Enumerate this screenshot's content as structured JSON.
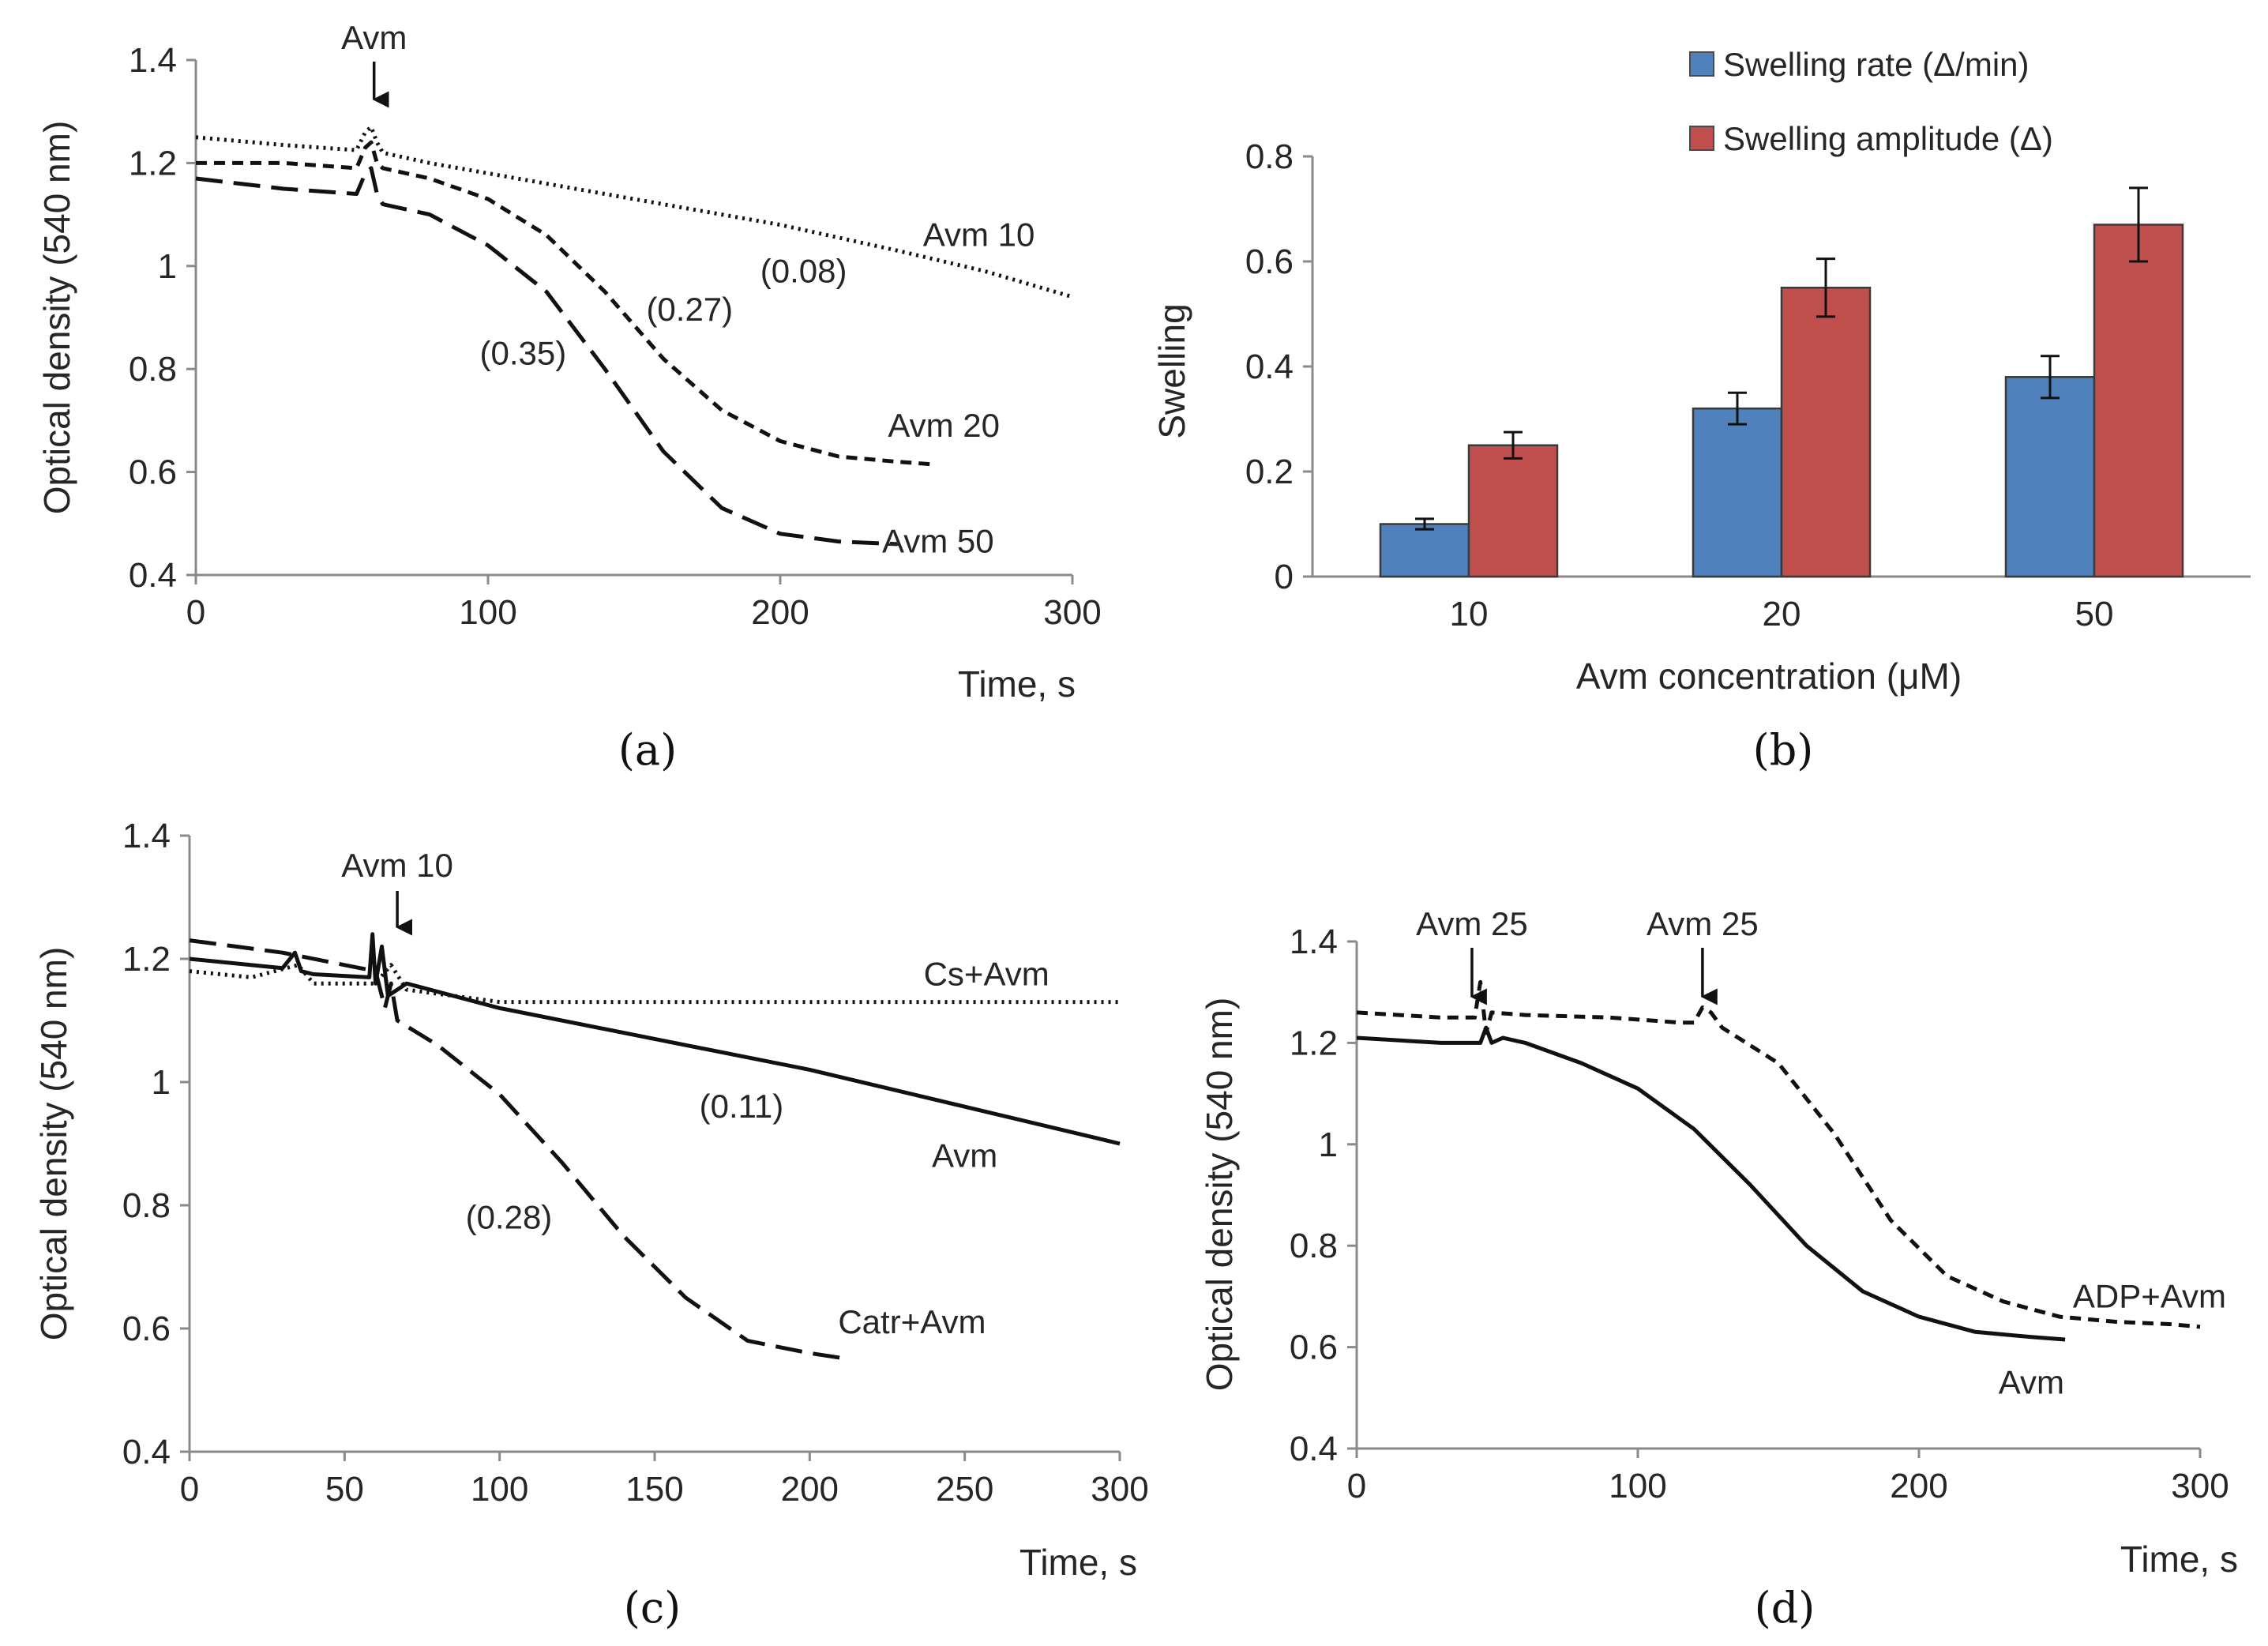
{
  "colors": {
    "rate": "#4f81bd",
    "amplitude": "#c0504d",
    "ink": "#111111"
  },
  "chart_data": [
    {
      "id": "a",
      "type": "line",
      "caption": "(a)",
      "xlabel": "Time, s",
      "ylabel": "Optical density (540 nm)",
      "xlim": [
        0,
        300
      ],
      "ylim": [
        0.4,
        1.4
      ],
      "xticks": [
        "0",
        "100",
        "200",
        "300"
      ],
      "yticks": [
        "0.4",
        "0.6",
        "0.8",
        "1",
        "1.2",
        "1.4"
      ],
      "arrow_labels": [
        {
          "text": "Avm",
          "x": 61
        }
      ],
      "series": [
        {
          "name": "Avm 10",
          "style": "dotted",
          "x": [
            0,
            30,
            55,
            58,
            60,
            62,
            64,
            80,
            120,
            160,
            200,
            240,
            270,
            300
          ],
          "y": [
            1.25,
            1.235,
            1.225,
            1.26,
            1.27,
            1.24,
            1.22,
            1.2,
            1.16,
            1.12,
            1.08,
            1.03,
            0.99,
            0.94
          ]
        },
        {
          "name": "Avm 20",
          "style": "short-dash",
          "x": [
            0,
            30,
            55,
            58,
            60,
            62,
            64,
            80,
            100,
            120,
            140,
            160,
            180,
            200,
            220,
            240,
            252
          ],
          "y": [
            1.2,
            1.2,
            1.19,
            1.23,
            1.24,
            1.2,
            1.19,
            1.17,
            1.13,
            1.06,
            0.95,
            0.82,
            0.72,
            0.66,
            0.63,
            0.62,
            0.615
          ]
        },
        {
          "name": "Avm 50",
          "style": "long-dash",
          "x": [
            0,
            30,
            55,
            58,
            60,
            62,
            64,
            80,
            100,
            120,
            140,
            160,
            180,
            200,
            220,
            240
          ],
          "y": [
            1.17,
            1.15,
            1.14,
            1.18,
            1.19,
            1.14,
            1.12,
            1.1,
            1.04,
            0.95,
            0.8,
            0.64,
            0.53,
            0.48,
            0.465,
            0.46
          ]
        }
      ],
      "labels": [
        {
          "text": "Avm 10",
          "x": 268,
          "y": 1.06
        },
        {
          "text": "Avm 20",
          "x": 256,
          "y": 0.69
        },
        {
          "text": "Avm 50",
          "x": 254,
          "y": 0.465
        },
        {
          "text": "(0.08)",
          "x": 208,
          "y": 0.99
        },
        {
          "text": "(0.27)",
          "x": 169,
          "y": 0.915
        },
        {
          "text": "(0.35)",
          "x": 112,
          "y": 0.83
        }
      ]
    },
    {
      "id": "b",
      "type": "bar",
      "caption": "(b)",
      "xlabel": "Avm concentration (μM)",
      "ylabel": "Swelling",
      "ylim": [
        0,
        0.8
      ],
      "yticks": [
        "0",
        "0.2",
        "0.4",
        "0.6",
        "0.8"
      ],
      "categories": [
        "10",
        "20",
        "50"
      ],
      "series": [
        {
          "name": "Swelling rate (Δ/min)",
          "values": [
            0.1,
            0.32,
            0.38
          ],
          "errors": [
            0.01,
            0.03,
            0.04
          ]
        },
        {
          "name": "Swelling amplitude (Δ)",
          "values": [
            0.25,
            0.55,
            0.67
          ],
          "errors": [
            0.025,
            0.055,
            0.07
          ]
        }
      ],
      "legend": "top"
    },
    {
      "id": "c",
      "type": "line",
      "caption": "(c)",
      "xlabel": "Time, s",
      "ylabel": "Optical density (540 nm)",
      "xlim": [
        0,
        300
      ],
      "ylim": [
        0.4,
        1.4
      ],
      "xticks": [
        "0",
        "50",
        "100",
        "150",
        "200",
        "250",
        "300"
      ],
      "yticks": [
        "0.4",
        "0.6",
        "0.8",
        "1",
        "1.2",
        "1.4"
      ],
      "arrow_labels": [
        {
          "text": "Avm 10",
          "x": 67
        }
      ],
      "series": [
        {
          "name": "Cs+Avm",
          "style": "dotted",
          "x": [
            0,
            20,
            35,
            40,
            60,
            65,
            70,
            100,
            150,
            200,
            250,
            300
          ],
          "y": [
            1.18,
            1.17,
            1.19,
            1.16,
            1.16,
            1.19,
            1.15,
            1.13,
            1.13,
            1.13,
            1.13,
            1.13
          ]
        },
        {
          "name": "Avm",
          "style": "solid",
          "x": [
            0,
            30,
            34,
            36,
            40,
            58,
            59,
            60,
            62,
            64,
            70,
            100,
            150,
            200,
            250,
            300
          ],
          "y": [
            1.2,
            1.185,
            1.21,
            1.18,
            1.175,
            1.17,
            1.24,
            1.16,
            1.22,
            1.14,
            1.16,
            1.12,
            1.07,
            1.02,
            0.96,
            0.9
          ]
        },
        {
          "name": "Catr+Avm",
          "style": "long-dash",
          "x": [
            0,
            30,
            50,
            60,
            63,
            65,
            67,
            80,
            100,
            120,
            140,
            160,
            180,
            200,
            213
          ],
          "y": [
            1.23,
            1.21,
            1.19,
            1.18,
            1.12,
            1.16,
            1.1,
            1.06,
            0.98,
            0.87,
            0.75,
            0.65,
            0.58,
            0.56,
            0.55
          ]
        }
      ],
      "labels": [
        {
          "text": "Cs+Avm",
          "x": 257,
          "y": 1.175
        },
        {
          "text": "Avm",
          "x": 250,
          "y": 0.88
        },
        {
          "text": "Catr+Avm",
          "x": 233,
          "y": 0.61
        },
        {
          "text": "(0.11)",
          "x": 178,
          "y": 0.96
        },
        {
          "text": "(0.28)",
          "x": 103,
          "y": 0.78
        }
      ]
    },
    {
      "id": "d",
      "type": "line",
      "caption": "(d)",
      "xlabel": "Time, s",
      "ylabel": "Optical density (540 nm)",
      "xlim": [
        0,
        300
      ],
      "ylim": [
        0.4,
        1.4
      ],
      "xticks": [
        "0",
        "100",
        "200",
        "300"
      ],
      "yticks": [
        "0.4",
        "0.6",
        "0.8",
        "1",
        "1.2",
        "1.4"
      ],
      "arrow_labels": [
        {
          "text": "Avm 25",
          "x": 41
        },
        {
          "text": "Avm 25",
          "x": 123
        }
      ],
      "series": [
        {
          "name": "ADP+Avm",
          "style": "short-dash",
          "x": [
            0,
            30,
            42,
            44,
            46,
            48,
            60,
            90,
            115,
            120,
            123,
            126,
            130,
            150,
            170,
            190,
            210,
            230,
            250,
            270,
            290,
            300
          ],
          "y": [
            1.26,
            1.25,
            1.25,
            1.32,
            1.22,
            1.26,
            1.255,
            1.25,
            1.24,
            1.24,
            1.27,
            1.26,
            1.23,
            1.16,
            1.02,
            0.85,
            0.74,
            0.69,
            0.66,
            0.65,
            0.645,
            0.64
          ]
        },
        {
          "name": "Avm",
          "style": "solid",
          "x": [
            0,
            30,
            44,
            46,
            48,
            52,
            60,
            80,
            100,
            120,
            140,
            160,
            180,
            200,
            220,
            240,
            252
          ],
          "y": [
            1.21,
            1.2,
            1.2,
            1.23,
            1.2,
            1.21,
            1.2,
            1.16,
            1.11,
            1.03,
            0.92,
            0.8,
            0.71,
            0.66,
            0.63,
            0.62,
            0.615
          ]
        }
      ],
      "labels": [
        {
          "text": "ADP+Avm",
          "x": 282,
          "y": 0.7
        },
        {
          "text": "Avm",
          "x": 240,
          "y": 0.53
        }
      ]
    }
  ]
}
